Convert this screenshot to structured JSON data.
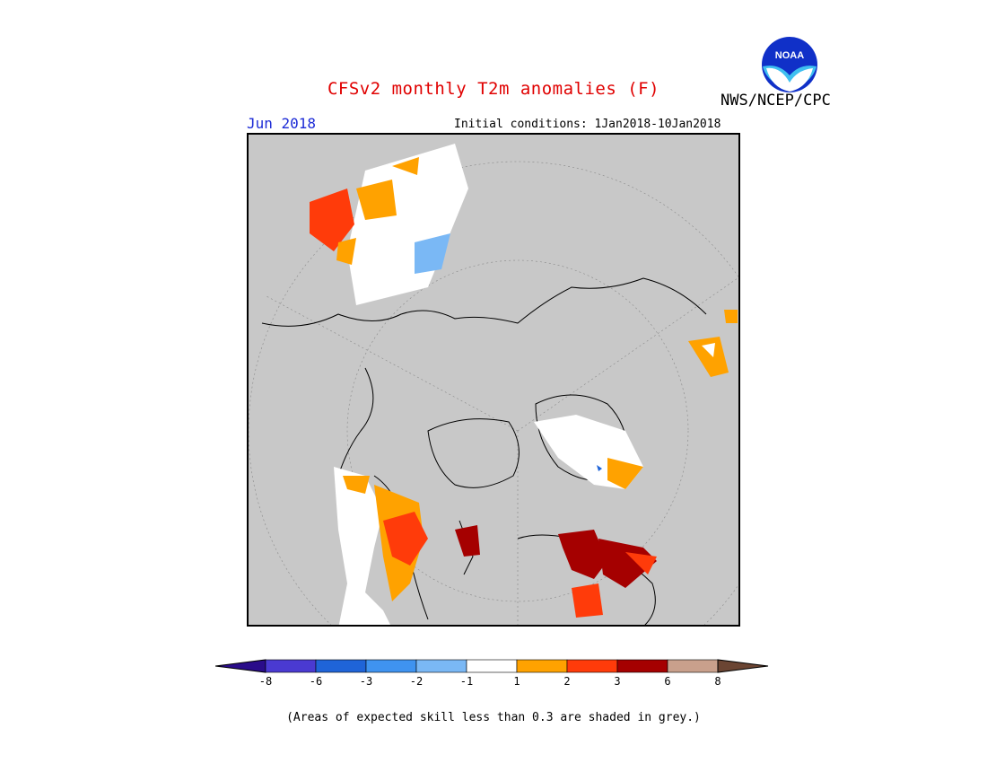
{
  "header": {
    "title": "CFSv2 monthly T2m anomalies (F)",
    "month": "Jun 2018",
    "initial_conditions": "Initial conditions: 1Jan2018-10Jan2018",
    "agency": "NWS/NCEP/CPC",
    "logo_text": "NOAA"
  },
  "map": {
    "projection": "north-polar-stereographic",
    "skill_mask_color": "#c8c8c8",
    "land_outline_color": "#000000"
  },
  "legend": {
    "colors": [
      "#2a0c8a",
      "#4a3ad1",
      "#1f64d8",
      "#3f93f0",
      "#7ab8f5",
      "#ffffff",
      "#ffa200",
      "#ff3b0a",
      "#a50000",
      "#c9a08c",
      "#6b4533"
    ],
    "tick_labels": [
      "-8",
      "-6",
      "-3",
      "-2",
      "-1",
      "1",
      "2",
      "3",
      "6",
      "8"
    ]
  },
  "footnote": "(Areas of expected skill less than 0.3 are shaded in grey.)"
}
